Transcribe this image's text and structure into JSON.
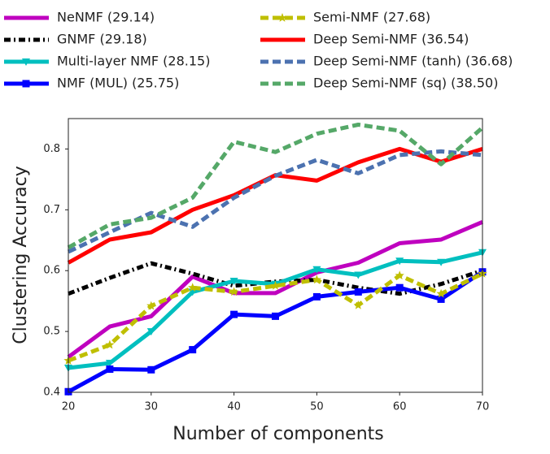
{
  "chart_data": {
    "type": "line",
    "x_label": "Number of components",
    "y_label": "Clustering Accuracy",
    "x": [
      20,
      25,
      30,
      35,
      40,
      45,
      50,
      55,
      60,
      65,
      70
    ],
    "xlim": [
      20,
      70
    ],
    "xticks": [
      20,
      30,
      40,
      50,
      60,
      70
    ],
    "ylim": [
      0.4,
      0.85
    ],
    "yticks": [
      0.4,
      0.5,
      0.6,
      0.7,
      0.8
    ],
    "series": [
      {
        "name": "NeNMF (29.14)",
        "color": "#bf00bf",
        "dash": "solid",
        "marker": "none",
        "values": [
          0.458,
          0.508,
          0.525,
          0.59,
          0.563,
          0.563,
          0.597,
          0.613,
          0.645,
          0.651,
          0.68
        ]
      },
      {
        "name": "GNMF (29.18)",
        "color": "#000000",
        "dash": "dashdot",
        "marker": "none",
        "values": [
          0.562,
          0.588,
          0.612,
          0.595,
          0.575,
          0.582,
          0.585,
          0.572,
          0.562,
          0.578,
          0.6
        ]
      },
      {
        "name": "Multi-layer NMF (28.15)",
        "color": "#00bfbf",
        "dash": "solid",
        "marker": "triangle-down",
        "values": [
          0.44,
          0.448,
          0.5,
          0.565,
          0.583,
          0.578,
          0.602,
          0.593,
          0.616,
          0.614,
          0.63
        ]
      },
      {
        "name": "NMF (MUL) (25.75)",
        "color": "#0000ff",
        "dash": "solid",
        "marker": "square",
        "values": [
          0.401,
          0.438,
          0.437,
          0.47,
          0.528,
          0.525,
          0.557,
          0.565,
          0.572,
          0.553,
          0.598
        ]
      },
      {
        "name": "Semi-NMF (27.68)",
        "color": "#bfbf00",
        "dash": "dashed",
        "marker": "star",
        "values": [
          0.452,
          0.478,
          0.542,
          0.572,
          0.565,
          0.575,
          0.585,
          0.543,
          0.592,
          0.562,
          0.595
        ]
      },
      {
        "name": "Deep Semi-NMF (36.54)",
        "color": "#ff0000",
        "dash": "solid",
        "marker": "none",
        "values": [
          0.613,
          0.651,
          0.663,
          0.7,
          0.724,
          0.757,
          0.748,
          0.778,
          0.8,
          0.779,
          0.8
        ]
      },
      {
        "name": "Deep Semi-NMF (tanh) (36.68)",
        "color": "#4c72b0",
        "dash": "dashed",
        "marker": "none",
        "values": [
          0.631,
          0.663,
          0.695,
          0.672,
          0.72,
          0.756,
          0.782,
          0.76,
          0.79,
          0.796,
          0.79
        ]
      },
      {
        "name": "Deep Semi-NMF (sq) (38.50)",
        "color": "#55a868",
        "dash": "dashed",
        "marker": "none",
        "values": [
          0.638,
          0.676,
          0.687,
          0.72,
          0.812,
          0.795,
          0.825,
          0.84,
          0.83,
          0.775,
          0.835
        ]
      }
    ]
  }
}
